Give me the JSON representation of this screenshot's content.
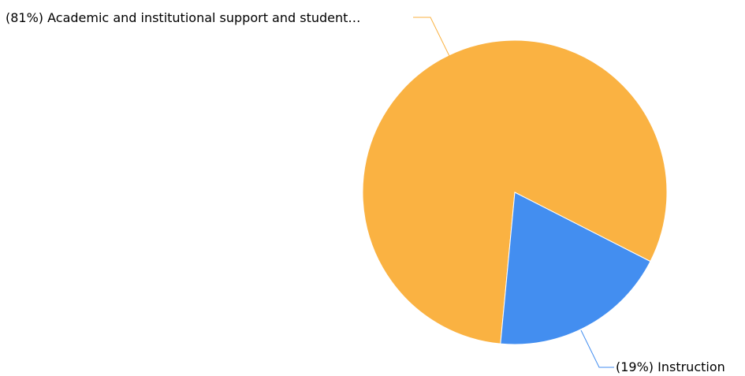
{
  "chart_data": {
    "type": "pie",
    "slices": [
      {
        "label": "(81%) Academic and institutional support and student…",
        "value": 81,
        "color": "#FAB242"
      },
      {
        "label": "(19%) Instruction",
        "value": 19,
        "color": "#438EF0"
      }
    ],
    "title": "",
    "legend": "none"
  }
}
